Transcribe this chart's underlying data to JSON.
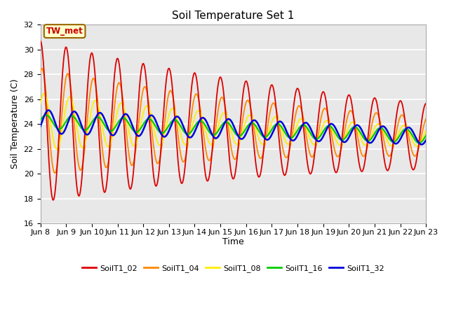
{
  "title": "Soil Temperature Set 1",
  "xlabel": "Time",
  "ylabel": "Soil Temperature (C)",
  "ylim": [
    16,
    32
  ],
  "annotation": "TW_met",
  "annotation_color": "#cc0000",
  "annotation_bg": "#ffffcc",
  "annotation_border": "#996600",
  "series": [
    "SoilT1_02",
    "SoilT1_04",
    "SoilT1_08",
    "SoilT1_16",
    "SoilT1_32"
  ],
  "colors": [
    "#dd0000",
    "#ff8800",
    "#ffee00",
    "#00cc00",
    "#0000dd"
  ],
  "bg_color": "#e8e8e8",
  "grid_color": "white",
  "xtick_labels": [
    "Jun 8",
    "Jun 9",
    "Jun 10",
    "Jun 11",
    "Jun 12",
    "Jun 13",
    "Jun 14",
    "Jun 15",
    "Jun 16",
    "Jun 17",
    "Jun 18",
    "Jun 19",
    "Jun 20",
    "Jun 21",
    "Jun 22",
    "Jun 23"
  ],
  "num_days": 15,
  "samples_per_day": 144
}
